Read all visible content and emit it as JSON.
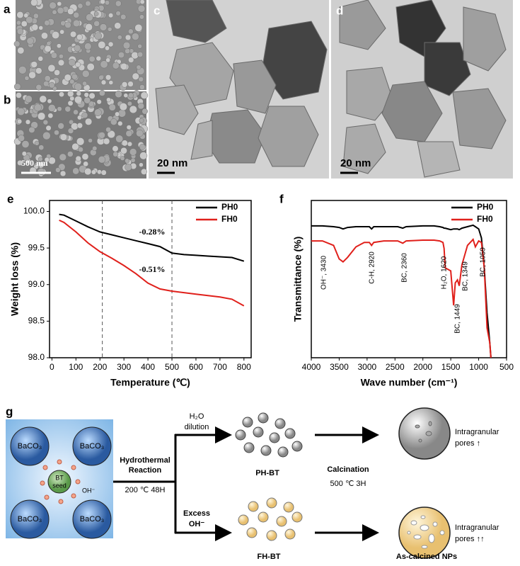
{
  "panels": [
    {
      "label": "a"
    },
    {
      "label": "b",
      "scale_bar": "500 nm"
    },
    {
      "label": "c",
      "scale_bar": "20 nm"
    },
    {
      "label": "d",
      "scale_bar": "20 nm"
    }
  ],
  "chart_data": [
    {
      "type": "line",
      "label": "e",
      "xlabel": "Temperature (℃)",
      "ylabel": "Weight loss (%)",
      "x": [
        30,
        50,
        100,
        150,
        200,
        250,
        300,
        350,
        400,
        450,
        500,
        550,
        600,
        650,
        700,
        750,
        800
      ],
      "series": [
        {
          "name": "PH0",
          "color": "#000000",
          "values": [
            99.96,
            99.95,
            99.87,
            99.79,
            99.72,
            99.68,
            99.64,
            99.6,
            99.56,
            99.52,
            99.43,
            99.41,
            99.4,
            99.39,
            99.38,
            99.37,
            99.32
          ]
        },
        {
          "name": "FH0",
          "color": "#e0201b",
          "values": [
            99.88,
            99.85,
            99.72,
            99.57,
            99.45,
            99.36,
            99.26,
            99.15,
            99.02,
            98.94,
            98.91,
            98.89,
            98.87,
            98.85,
            98.83,
            98.8,
            98.71
          ]
        }
      ],
      "xlim": [
        -10,
        830
      ],
      "xticks": [
        0,
        100,
        200,
        300,
        400,
        500,
        600,
        700,
        800
      ],
      "ylim": [
        98.0,
        100.15
      ],
      "yticks": [
        {
          "value": 98.0,
          "label": "98.0"
        },
        {
          "value": 98.5,
          "label": "98.5"
        },
        {
          "value": 99.0,
          "label": "99.0"
        },
        {
          "value": 99.5,
          "label": "99.5"
        },
        {
          "value": 100.0,
          "label": "100.0"
        }
      ],
      "vlines": [
        210,
        500
      ],
      "annotations": [
        "-0.28%",
        "-0.51%"
      ],
      "legend": "upper right"
    },
    {
      "type": "line",
      "label": "f",
      "xlabel": "Wave number (cm⁻¹)",
      "ylabel": "Transmittance (%)",
      "x": [
        4000,
        3800,
        3600,
        3500,
        3430,
        3350,
        3200,
        3050,
        2960,
        2920,
        2880,
        2700,
        2450,
        2360,
        2300,
        2000,
        1800,
        1700,
        1640,
        1620,
        1600,
        1500,
        1449,
        1420,
        1380,
        1349,
        1300,
        1200,
        1100,
        1059,
        1000,
        950,
        900,
        850,
        800,
        780
      ],
      "series": [
        {
          "name": "PH0",
          "color": "#000000",
          "values": [
            88,
            88,
            87.5,
            87,
            86,
            87,
            87.5,
            87.5,
            87.5,
            86,
            87.5,
            87.5,
            87.5,
            86.5,
            87.5,
            88,
            88,
            87.5,
            87,
            86.5,
            86.5,
            85.5,
            86,
            86,
            86,
            85.5,
            86.5,
            87.5,
            88.5,
            87.5,
            86,
            80,
            60,
            30,
            10,
            0
          ]
        },
        {
          "name": "FH0",
          "color": "#e0201b",
          "values": [
            78,
            78,
            75,
            66,
            64,
            67,
            74,
            77,
            77,
            75,
            77,
            78,
            78,
            76.5,
            78,
            78.5,
            78.5,
            78,
            77,
            73,
            60,
            58,
            35,
            50,
            52,
            48,
            62,
            75,
            79,
            74,
            78,
            77,
            60,
            20,
            10,
            0
          ]
        }
      ],
      "xlim": [
        4000,
        500
      ],
      "xticks": [
        4000,
        3500,
        3000,
        2500,
        2000,
        1500,
        1000,
        500
      ],
      "ylim": [
        0,
        105
      ],
      "annotations": [
        "OH⁻, 3430",
        "C-H, 2920",
        "BC, 2360",
        "H₂O, 1620",
        "BC, 1449",
        "BC, 1349",
        "BC, 1059"
      ],
      "legend": "upper right"
    }
  ],
  "diagram": {
    "label": "g",
    "baco3": "BaCO₃",
    "seed": [
      "BT",
      "seed"
    ],
    "oh": "OH⁻",
    "hydrothermal": [
      "Hydrothermal",
      "Reaction"
    ],
    "condition": "200 ℃ 48H",
    "dilution": [
      "H₂O",
      "dilution"
    ],
    "excess": [
      "Excess",
      "OH⁻"
    ],
    "ph": "PH-BT",
    "fh": "FH-BT",
    "calcination": "Calcination",
    "calc_condition": "500 ℃ 3H",
    "pores1": [
      "Intragranular",
      "pores ↑"
    ],
    "pores2": [
      "Intragranular",
      "pores ↑↑"
    ],
    "product": "As-calcined NPs"
  }
}
